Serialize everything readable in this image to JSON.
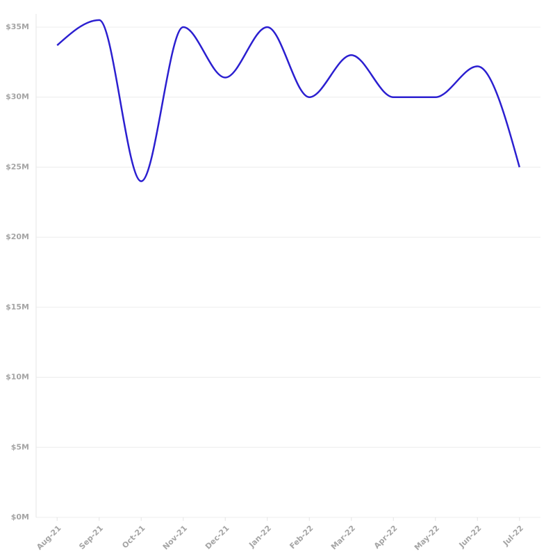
{
  "chart_data": {
    "type": "line",
    "categories": [
      "Aug-21",
      "Sep-21",
      "Oct-21",
      "Nov-21",
      "Dec-21",
      "Jan-22",
      "Feb-22",
      "Mar-22",
      "Apr-22",
      "May-22",
      "Jun-22",
      "Jul-22"
    ],
    "values": [
      33700000,
      35500000,
      24000000,
      35000000,
      31400000,
      35000000,
      30000000,
      33000000,
      30000000,
      30000000,
      32200000,
      25000000
    ],
    "color": "#2b1fd0",
    "ylim": [
      0,
      35000000
    ],
    "yticks": [
      {
        "value": 0,
        "label": "$0M"
      },
      {
        "value": 5000000,
        "label": "$5M"
      },
      {
        "value": 10000000,
        "label": "$10M"
      },
      {
        "value": 15000000,
        "label": "$15M"
      },
      {
        "value": 20000000,
        "label": "$20M"
      },
      {
        "value": 25000000,
        "label": "$25M"
      },
      {
        "value": 30000000,
        "label": "$30M"
      },
      {
        "value": 35000000,
        "label": "$35M"
      }
    ],
    "grid": true
  }
}
